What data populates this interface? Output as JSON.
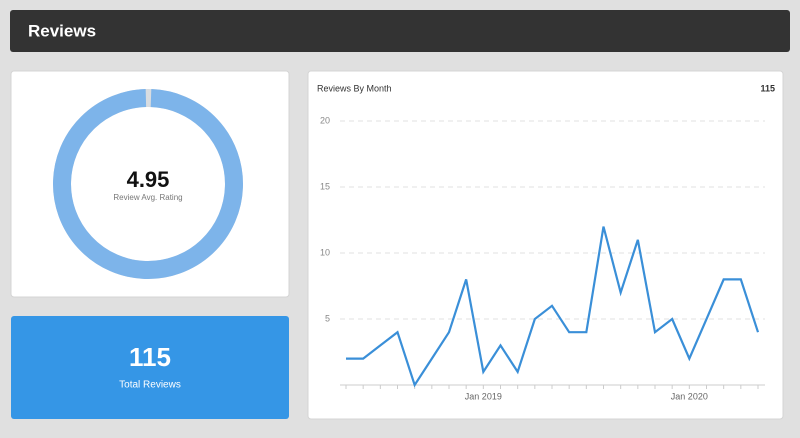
{
  "header": {
    "title": "Reviews"
  },
  "rating_card": {
    "value": 4.95,
    "label": "Review Avg. Rating"
  },
  "total_card": {
    "value": 115,
    "label": "Total Reviews"
  },
  "chart_data": {
    "type": "line",
    "title": "Reviews By Month",
    "total": 115,
    "categories": [
      null,
      null,
      null,
      null,
      null,
      null,
      null,
      null,
      "Jan 2019",
      null,
      null,
      null,
      null,
      null,
      null,
      null,
      null,
      null,
      null,
      null,
      "Jan 2020",
      null,
      null,
      null,
      null
    ],
    "series": [
      {
        "name": "Reviews",
        "color": "#3a8fd8",
        "values": [
          2,
          2,
          3,
          4,
          0,
          2,
          4,
          8,
          1,
          3,
          1,
          5,
          6,
          4,
          4,
          12,
          7,
          11,
          4,
          5,
          2,
          5,
          8,
          8,
          4
        ]
      }
    ],
    "ylim": [
      0,
      20
    ],
    "yticks": [
      5,
      10,
      15,
      20
    ],
    "grid": true
  }
}
